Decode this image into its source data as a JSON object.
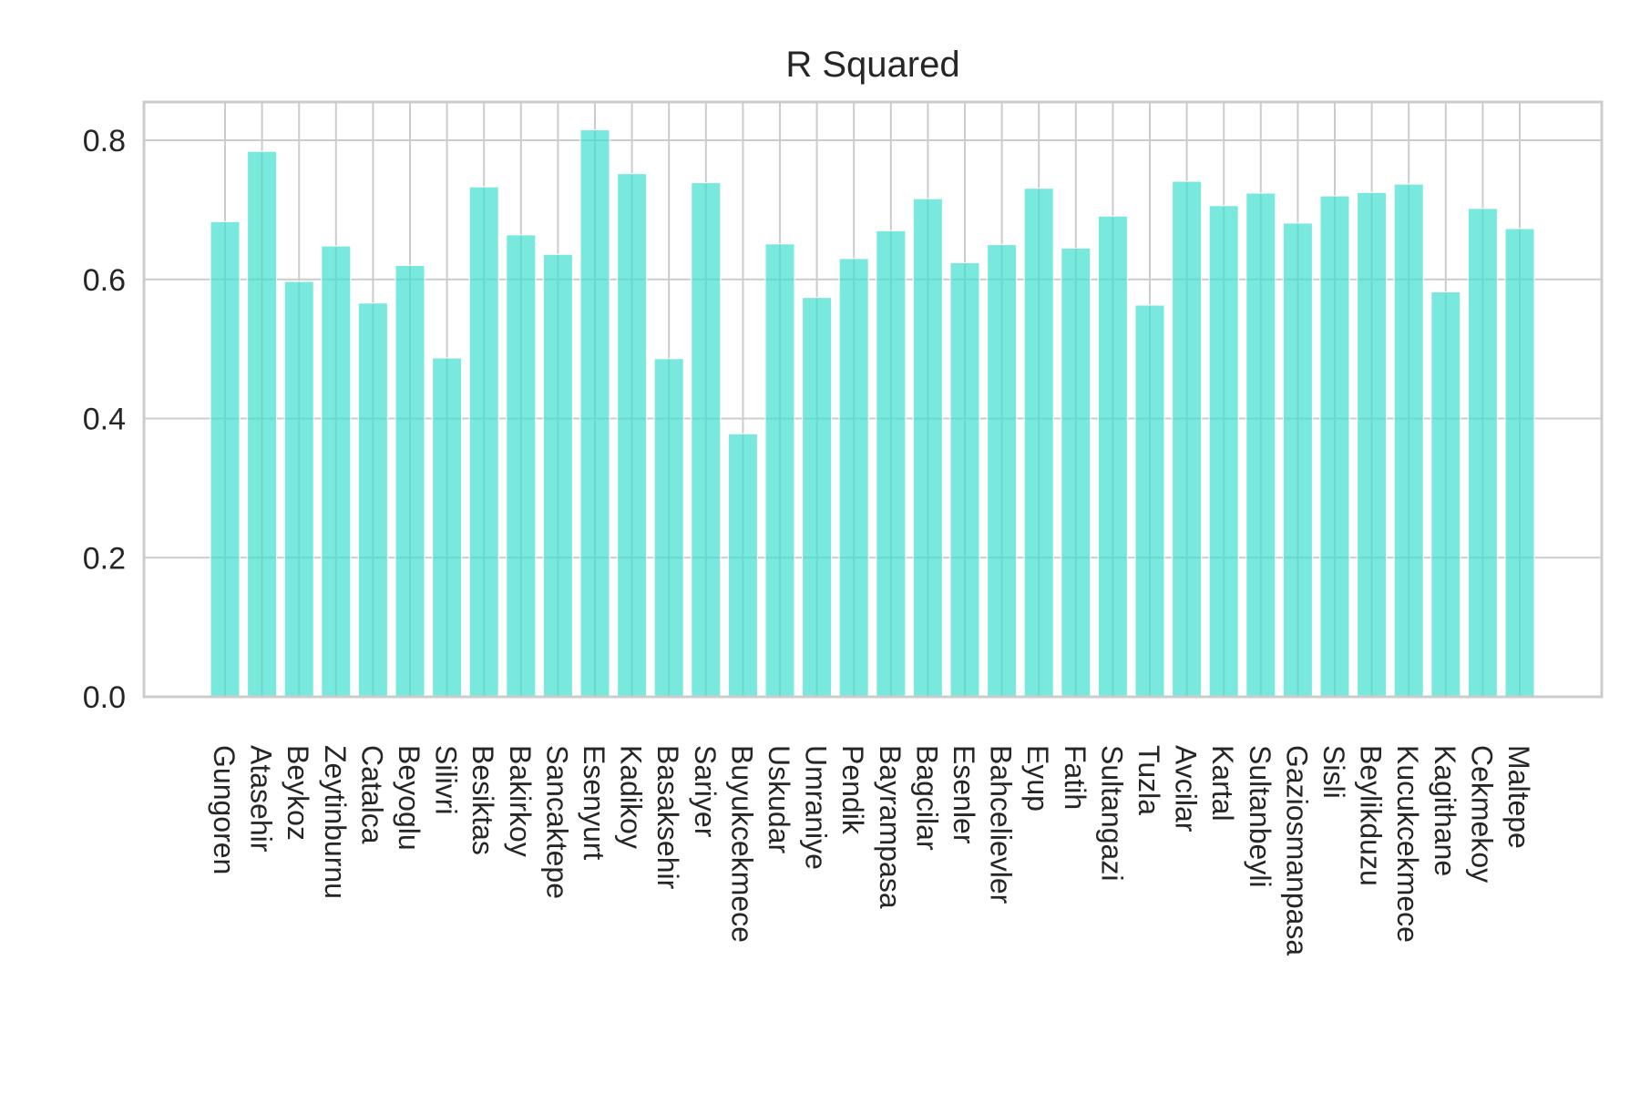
{
  "chart_data": {
    "type": "bar",
    "title": "R Squared",
    "xlabel": "",
    "ylabel": "",
    "categories": [
      "Gungoren",
      "Atasehir",
      "Beykoz",
      "Zeytinburnu",
      "Catalca",
      "Beyoglu",
      "Silivri",
      "Besiktas",
      "Bakirkoy",
      "Sancaktepe",
      "Esenyurt",
      "Kadikoy",
      "Basaksehir",
      "Sariyer",
      "Buyukcekmece",
      "Uskudar",
      "Umraniye",
      "Pendik",
      "Bayrampasa",
      "Bagcilar",
      "Esenler",
      "Bahcelievler",
      "Eyup",
      "Fatih",
      "Sultangazi",
      "Tuzla",
      "Avcilar",
      "Kartal",
      "Sultanbeyli",
      "Gaziosmanpasa",
      "Sisli",
      "Beylikduzu",
      "Kucukcekmece",
      "Kagithane",
      "Cekmekoy",
      "Maltepe"
    ],
    "values": [
      0.683,
      0.784,
      0.597,
      0.648,
      0.566,
      0.62,
      0.487,
      0.733,
      0.664,
      0.636,
      0.815,
      0.752,
      0.486,
      0.739,
      0.378,
      0.651,
      0.574,
      0.63,
      0.67,
      0.716,
      0.624,
      0.65,
      0.731,
      0.645,
      0.691,
      0.563,
      0.741,
      0.706,
      0.724,
      0.681,
      0.72,
      0.725,
      0.737,
      0.582,
      0.702,
      0.673
    ],
    "ylim": [
      0,
      0.855
    ],
    "yticks": [
      "0.0",
      "0.2",
      "0.4",
      "0.6",
      "0.8"
    ],
    "ytick_values": [
      0,
      0.2,
      0.4,
      0.6,
      0.8
    ],
    "grid": true,
    "bar_color": "#40E0D0",
    "bar_opacity": 0.7
  }
}
